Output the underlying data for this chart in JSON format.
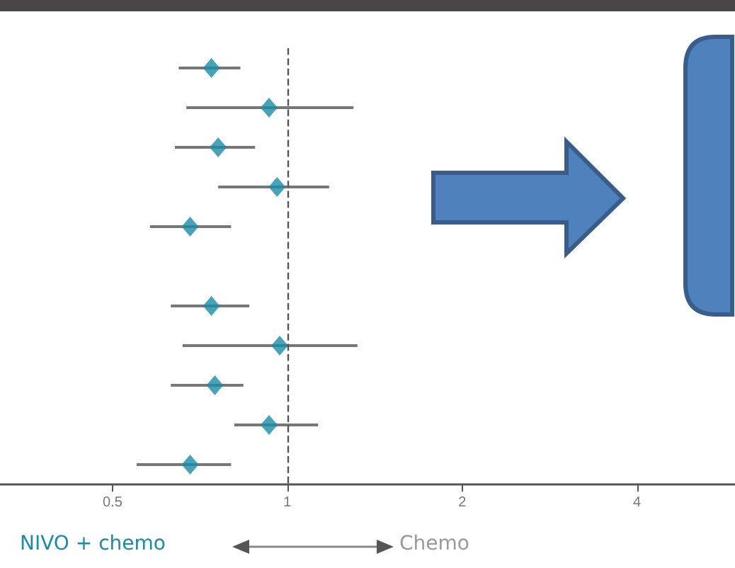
{
  "chart_data": {
    "type": "scatter",
    "orientation": "horizontal",
    "log": "x",
    "marker": "diamond",
    "grid": false,
    "tick_labels": "x",
    "categories": [
      null,
      null,
      null,
      null,
      null,
      null,
      null,
      null,
      null,
      null,
      null
    ],
    "values": [
      0.74,
      0.93,
      0.76,
      0.96,
      0.68,
      null,
      0.74,
      0.97,
      0.75,
      0.93,
      0.68
    ],
    "errors": [
      [
        0.65,
        0.83
      ],
      [
        0.67,
        1.3
      ],
      [
        0.64,
        0.88
      ],
      [
        0.76,
        1.18
      ],
      [
        0.58,
        0.8
      ],
      null,
      [
        0.63,
        0.86
      ],
      [
        0.66,
        1.32
      ],
      [
        0.63,
        0.84
      ],
      [
        0.81,
        1.13
      ],
      [
        0.55,
        0.8
      ]
    ],
    "color": "#1b8ca6",
    "xlim": [
      0.32,
      5.9
    ],
    "xticks": [
      0.5,
      1,
      2,
      4
    ],
    "ref_lines": [
      {
        "axis": "x",
        "value": 1,
        "line_style": "dashed",
        "color": "#555555"
      }
    ],
    "annotations": [
      "NIVO + chemo",
      "Chemo"
    ]
  }
}
